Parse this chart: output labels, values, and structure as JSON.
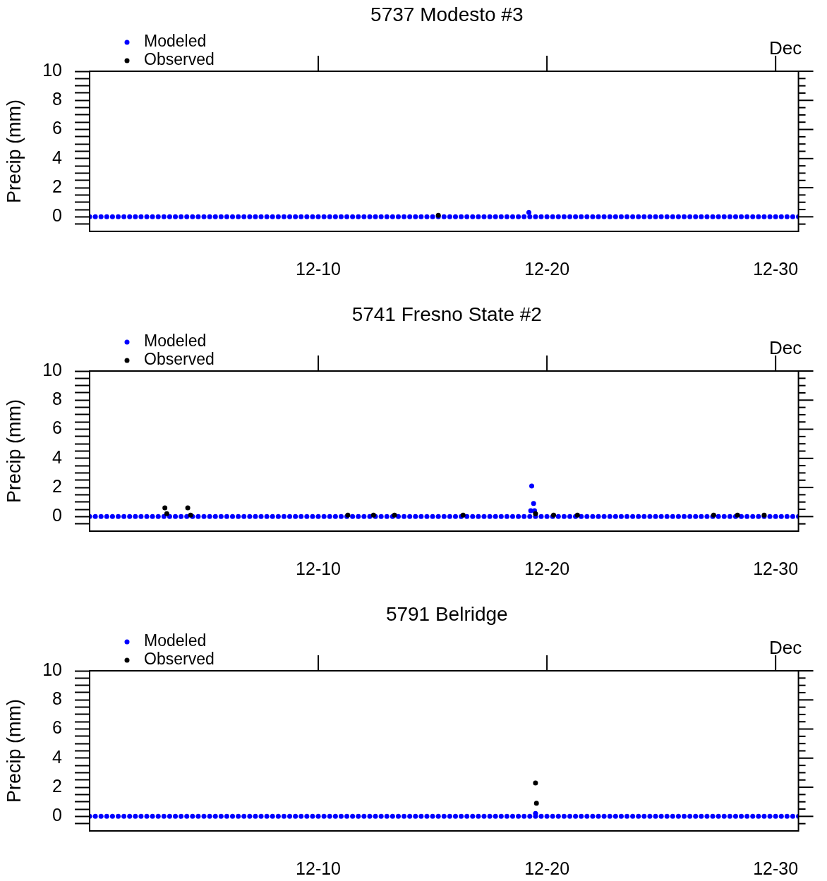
{
  "chart_data": [
    {
      "type": "scatter",
      "title": "5737 Modesto #3",
      "ylabel": "Precip (mm)",
      "annotations": [
        {
          "text": "Dec",
          "x": "--12-30T00:00"
        }
      ],
      "xlim": [
        "--11-30T00:00",
        "--12-31T00:00"
      ],
      "xticks": [
        {
          "value": "--12-10",
          "label": "12-10"
        },
        {
          "value": "--12-20",
          "label": "12-20"
        },
        {
          "value": "--12-30",
          "label": "12-30"
        }
      ],
      "ylim": [
        -1,
        10
      ],
      "yticks": [
        {
          "value": -0.5,
          "label": null
        },
        0,
        {
          "value": 0.5,
          "label": null
        },
        {
          "value": 1,
          "label": null
        },
        {
          "value": 1.5,
          "label": null
        },
        2,
        {
          "value": 2.5,
          "label": null
        },
        {
          "value": 3,
          "label": null
        },
        {
          "value": 3.5,
          "label": null
        },
        4,
        {
          "value": 4.5,
          "label": null
        },
        {
          "value": 5,
          "label": null
        },
        {
          "value": 5.5,
          "label": null
        },
        6,
        {
          "value": 6.5,
          "label": null
        },
        {
          "value": 7,
          "label": null
        },
        {
          "value": 7.5,
          "label": null
        },
        8,
        {
          "value": 8.5,
          "label": null
        },
        {
          "value": 9,
          "label": null
        },
        {
          "value": 9.5,
          "label": null
        },
        10
      ],
      "legend": "top left",
      "marker": "circle",
      "series": [
        {
          "name": "Modeled",
          "color": "#0000ff",
          "x": [
            "--11-30T00:00",
            "--11-30T06:00",
            "--11-30T12:00",
            "--11-30T18:00",
            "--12-01T00:00",
            "--12-01T06:00",
            "--12-01T12:00",
            "--12-01T18:00",
            "--12-02T00:00",
            "--12-02T06:00",
            "--12-02T12:00",
            "--12-02T18:00",
            "--12-03T00:00",
            "--12-03T06:00",
            "--12-03T12:00",
            "--12-03T18:00",
            "--12-04T00:00",
            "--12-04T06:00",
            "--12-04T12:00",
            "--12-04T18:00",
            "--12-05T00:00",
            "--12-05T06:00",
            "--12-05T12:00",
            "--12-05T18:00",
            "--12-06T00:00",
            "--12-06T06:00",
            "--12-06T12:00",
            "--12-06T18:00",
            "--12-07T00:00",
            "--12-07T06:00",
            "--12-07T12:00",
            "--12-07T18:00",
            "--12-08T00:00",
            "--12-08T06:00",
            "--12-08T12:00",
            "--12-08T18:00",
            "--12-09T00:00",
            "--12-09T06:00",
            "--12-09T12:00",
            "--12-09T18:00",
            "--12-10T00:00",
            "--12-10T06:00",
            "--12-10T12:00",
            "--12-10T18:00",
            "--12-11T00:00",
            "--12-11T06:00",
            "--12-11T12:00",
            "--12-11T18:00",
            "--12-12T00:00",
            "--12-12T06:00",
            "--12-12T12:00",
            "--12-12T18:00",
            "--12-13T00:00",
            "--12-13T06:00",
            "--12-13T12:00",
            "--12-13T18:00",
            "--12-14T00:00",
            "--12-14T06:00",
            "--12-14T12:00",
            "--12-14T18:00",
            "--12-15T00:00",
            "--12-15T06:00",
            "--12-15T12:00",
            "--12-15T18:00",
            "--12-16T00:00",
            "--12-16T06:00",
            "--12-16T12:00",
            "--12-16T18:00",
            "--12-17T00:00",
            "--12-17T06:00",
            "--12-17T12:00",
            "--12-17T18:00",
            "--12-18T00:00",
            "--12-18T06:00",
            "--12-18T12:00",
            "--12-18T18:00",
            "--12-19T00:00",
            "--12-19T06:00",
            "--12-19T12:00",
            "--12-19T18:00",
            "--12-20T00:00",
            "--12-20T06:00",
            "--12-20T12:00",
            "--12-20T18:00",
            "--12-21T00:00",
            "--12-21T06:00",
            "--12-21T12:00",
            "--12-21T18:00",
            "--12-22T00:00",
            "--12-22T06:00",
            "--12-22T12:00",
            "--12-22T18:00",
            "--12-23T00:00",
            "--12-23T06:00",
            "--12-23T12:00",
            "--12-23T18:00",
            "--12-24T00:00",
            "--12-24T06:00",
            "--12-24T12:00",
            "--12-24T18:00",
            "--12-25T00:00",
            "--12-25T06:00",
            "--12-25T12:00",
            "--12-25T18:00",
            "--12-26T00:00",
            "--12-26T06:00",
            "--12-26T12:00",
            "--12-26T18:00",
            "--12-27T00:00",
            "--12-27T06:00",
            "--12-27T12:00",
            "--12-27T18:00",
            "--12-28T00:00",
            "--12-28T06:00",
            "--12-28T12:00",
            "--12-28T18:00",
            "--12-29T00:00",
            "--12-29T06:00",
            "--12-29T12:00",
            "--12-29T18:00",
            "--12-30T00:00",
            "--12-30T06:00",
            "--12-30T12:00",
            "--12-30T18:00",
            "--12-31T00:00",
            "--12-19T05:00"
          ],
          "values": [
            0,
            0,
            0,
            0,
            0,
            0,
            0,
            0,
            0,
            0,
            0,
            0,
            0,
            0,
            0,
            0,
            0,
            0,
            0,
            0,
            0,
            0,
            0,
            0,
            0,
            0,
            0,
            0,
            0,
            0,
            0,
            0,
            0,
            0,
            0,
            0,
            0,
            0,
            0,
            0,
            0,
            0,
            0,
            0,
            0,
            0,
            0,
            0,
            0,
            0,
            0,
            0,
            0,
            0,
            0,
            0,
            0,
            0,
            0,
            0,
            0,
            0,
            0,
            0,
            0,
            0,
            0,
            0,
            0,
            0,
            0,
            0,
            0,
            0,
            0,
            0,
            0,
            0,
            0,
            0,
            0,
            0,
            0,
            0,
            0,
            0,
            0,
            0,
            0,
            0,
            0,
            0,
            0,
            0,
            0,
            0,
            0,
            0,
            0,
            0,
            0,
            0,
            0,
            0,
            0,
            0,
            0,
            0,
            0,
            0,
            0,
            0,
            0,
            0,
            0,
            0,
            0,
            0,
            0,
            0,
            0,
            0,
            0,
            0,
            0,
            0.3
          ]
        },
        {
          "name": "Observed",
          "color": "#000000",
          "x": [
            "--12-15T06:00"
          ],
          "values": [
            0.1
          ]
        }
      ]
    },
    {
      "type": "scatter",
      "title": "5741 Fresno State #2",
      "ylabel": "Precip (mm)",
      "annotations": [
        {
          "text": "Dec",
          "x": "--12-30T00:00"
        }
      ],
      "xlim": [
        "--11-30T00:00",
        "--12-31T00:00"
      ],
      "xticks": [
        {
          "value": "--12-10",
          "label": "12-10"
        },
        {
          "value": "--12-20",
          "label": "12-20"
        },
        {
          "value": "--12-30",
          "label": "12-30"
        }
      ],
      "ylim": [
        -1,
        10
      ],
      "yticks": [
        {
          "value": -0.5,
          "label": null
        },
        0,
        {
          "value": 0.5,
          "label": null
        },
        {
          "value": 1,
          "label": null
        },
        {
          "value": 1.5,
          "label": null
        },
        2,
        {
          "value": 2.5,
          "label": null
        },
        {
          "value": 3,
          "label": null
        },
        {
          "value": 3.5,
          "label": null
        },
        4,
        {
          "value": 4.5,
          "label": null
        },
        {
          "value": 5,
          "label": null
        },
        {
          "value": 5.5,
          "label": null
        },
        6,
        {
          "value": 6.5,
          "label": null
        },
        {
          "value": 7,
          "label": null
        },
        {
          "value": 7.5,
          "label": null
        },
        8,
        {
          "value": 8.5,
          "label": null
        },
        {
          "value": 9,
          "label": null
        },
        {
          "value": 9.5,
          "label": null
        },
        10
      ],
      "legend": "top left",
      "marker": "circle",
      "series": [
        {
          "name": "Modeled",
          "color": "#0000ff",
          "x": [
            "--11-30T00:00",
            "--11-30T06:00",
            "--11-30T12:00",
            "--11-30T18:00",
            "--12-01T00:00",
            "--12-01T06:00",
            "--12-01T12:00",
            "--12-01T18:00",
            "--12-02T00:00",
            "--12-02T06:00",
            "--12-02T12:00",
            "--12-02T18:00",
            "--12-03T00:00",
            "--12-03T06:00",
            "--12-03T12:00",
            "--12-03T18:00",
            "--12-04T00:00",
            "--12-04T06:00",
            "--12-04T12:00",
            "--12-04T18:00",
            "--12-05T00:00",
            "--12-05T06:00",
            "--12-05T12:00",
            "--12-05T18:00",
            "--12-06T00:00",
            "--12-06T06:00",
            "--12-06T12:00",
            "--12-06T18:00",
            "--12-07T00:00",
            "--12-07T06:00",
            "--12-07T12:00",
            "--12-07T18:00",
            "--12-08T00:00",
            "--12-08T06:00",
            "--12-08T12:00",
            "--12-08T18:00",
            "--12-09T00:00",
            "--12-09T06:00",
            "--12-09T12:00",
            "--12-09T18:00",
            "--12-10T00:00",
            "--12-10T06:00",
            "--12-10T12:00",
            "--12-10T18:00",
            "--12-11T00:00",
            "--12-11T06:00",
            "--12-11T12:00",
            "--12-11T18:00",
            "--12-12T00:00",
            "--12-12T06:00",
            "--12-12T12:00",
            "--12-12T18:00",
            "--12-13T00:00",
            "--12-13T06:00",
            "--12-13T12:00",
            "--12-13T18:00",
            "--12-14T00:00",
            "--12-14T06:00",
            "--12-14T12:00",
            "--12-14T18:00",
            "--12-15T00:00",
            "--12-15T06:00",
            "--12-15T12:00",
            "--12-15T18:00",
            "--12-16T00:00",
            "--12-16T06:00",
            "--12-16T12:00",
            "--12-16T18:00",
            "--12-17T00:00",
            "--12-17T06:00",
            "--12-17T12:00",
            "--12-17T18:00",
            "--12-18T00:00",
            "--12-18T06:00",
            "--12-18T12:00",
            "--12-18T18:00",
            "--12-19T00:00",
            "--12-19T06:00",
            "--12-19T12:00",
            "--12-19T18:00",
            "--12-20T00:00",
            "--12-20T06:00",
            "--12-20T12:00",
            "--12-20T18:00",
            "--12-21T00:00",
            "--12-21T06:00",
            "--12-21T12:00",
            "--12-21T18:00",
            "--12-22T00:00",
            "--12-22T06:00",
            "--12-22T12:00",
            "--12-22T18:00",
            "--12-23T00:00",
            "--12-23T06:00",
            "--12-23T12:00",
            "--12-23T18:00",
            "--12-24T00:00",
            "--12-24T06:00",
            "--12-24T12:00",
            "--12-24T18:00",
            "--12-25T00:00",
            "--12-25T06:00",
            "--12-25T12:00",
            "--12-25T18:00",
            "--12-26T00:00",
            "--12-26T06:00",
            "--12-26T12:00",
            "--12-26T18:00",
            "--12-27T00:00",
            "--12-27T06:00",
            "--12-27T12:00",
            "--12-27T18:00",
            "--12-28T00:00",
            "--12-28T06:00",
            "--12-28T12:00",
            "--12-28T18:00",
            "--12-29T00:00",
            "--12-29T06:00",
            "--12-29T12:00",
            "--12-29T18:00",
            "--12-30T00:00",
            "--12-30T06:00",
            "--12-30T12:00",
            "--12-30T18:00",
            "--12-31T00:00",
            "--12-19T08:00",
            "--12-19T10:00",
            "--12-19T07:00",
            "--12-19T11:00"
          ],
          "values": [
            0,
            0,
            0,
            0,
            0,
            0,
            0,
            0,
            0,
            0,
            0,
            0,
            0,
            0,
            0,
            0,
            0,
            0,
            0,
            0,
            0,
            0,
            0,
            0,
            0,
            0,
            0,
            0,
            0,
            0,
            0,
            0,
            0,
            0,
            0,
            0,
            0,
            0,
            0,
            0,
            0,
            0,
            0,
            0,
            0,
            0,
            0,
            0,
            0,
            0,
            0,
            0,
            0,
            0,
            0,
            0,
            0,
            0,
            0,
            0,
            0,
            0,
            0,
            0,
            0,
            0,
            0,
            0,
            0,
            0,
            0,
            0,
            0,
            0,
            0,
            0,
            0,
            0,
            0,
            0,
            0,
            0,
            0,
            0,
            0,
            0,
            0,
            0,
            0,
            0,
            0,
            0,
            0,
            0,
            0,
            0,
            0,
            0,
            0,
            0,
            0,
            0,
            0,
            0,
            0,
            0,
            0,
            0,
            0,
            0,
            0,
            0,
            0,
            0,
            0,
            0,
            0,
            0,
            0,
            0,
            0,
            0,
            0,
            0,
            0,
            2.1,
            0.9,
            0.4,
            0.4
          ]
        },
        {
          "name": "Observed",
          "color": "#000000",
          "x": [
            "--12-03T07:00",
            "--12-03T09:00",
            "--12-04T07:00",
            "--12-04T10:00",
            "--12-11T07:00",
            "--12-12T10:00",
            "--12-13T08:00",
            "--12-16T08:00",
            "--12-19T12:00",
            "--12-20T07:00",
            "--12-21T08:00",
            "--12-27T07:00",
            "--12-28T08:00",
            "--12-29T12:00"
          ],
          "values": [
            0.6,
            0.2,
            0.6,
            0.1,
            0.1,
            0.1,
            0.1,
            0.1,
            0.2,
            0.1,
            0.1,
            0.1,
            0.1,
            0.1
          ]
        }
      ]
    },
    {
      "type": "scatter",
      "title": "5791 Belridge",
      "ylabel": "Precip (mm)",
      "annotations": [
        {
          "text": "Dec",
          "x": "--12-30T00:00"
        }
      ],
      "xlim": [
        "--11-30T00:00",
        "--12-31T00:00"
      ],
      "xticks": [
        {
          "value": "--12-10",
          "label": "12-10"
        },
        {
          "value": "--12-20",
          "label": "12-20"
        },
        {
          "value": "--12-30",
          "label": "12-30"
        }
      ],
      "ylim": [
        -1,
        10
      ],
      "yticks": [
        {
          "value": -0.5,
          "label": null
        },
        0,
        {
          "value": 0.5,
          "label": null
        },
        {
          "value": 1,
          "label": null
        },
        {
          "value": 1.5,
          "label": null
        },
        2,
        {
          "value": 2.5,
          "label": null
        },
        {
          "value": 3,
          "label": null
        },
        {
          "value": 3.5,
          "label": null
        },
        4,
        {
          "value": 4.5,
          "label": null
        },
        {
          "value": 5,
          "label": null
        },
        {
          "value": 5.5,
          "label": null
        },
        6,
        {
          "value": 6.5,
          "label": null
        },
        {
          "value": 7,
          "label": null
        },
        {
          "value": 7.5,
          "label": null
        },
        8,
        {
          "value": 8.5,
          "label": null
        },
        {
          "value": 9,
          "label": null
        },
        {
          "value": 9.5,
          "label": null
        },
        10
      ],
      "legend": "top left",
      "marker": "circle",
      "series": [
        {
          "name": "Modeled",
          "color": "#0000ff",
          "x": [
            "--11-30T00:00",
            "--11-30T06:00",
            "--11-30T12:00",
            "--11-30T18:00",
            "--12-01T00:00",
            "--12-01T06:00",
            "--12-01T12:00",
            "--12-01T18:00",
            "--12-02T00:00",
            "--12-02T06:00",
            "--12-02T12:00",
            "--12-02T18:00",
            "--12-03T00:00",
            "--12-03T06:00",
            "--12-03T12:00",
            "--12-03T18:00",
            "--12-04T00:00",
            "--12-04T06:00",
            "--12-04T12:00",
            "--12-04T18:00",
            "--12-05T00:00",
            "--12-05T06:00",
            "--12-05T12:00",
            "--12-05T18:00",
            "--12-06T00:00",
            "--12-06T06:00",
            "--12-06T12:00",
            "--12-06T18:00",
            "--12-07T00:00",
            "--12-07T06:00",
            "--12-07T12:00",
            "--12-07T18:00",
            "--12-08T00:00",
            "--12-08T06:00",
            "--12-08T12:00",
            "--12-08T18:00",
            "--12-09T00:00",
            "--12-09T06:00",
            "--12-09T12:00",
            "--12-09T18:00",
            "--12-10T00:00",
            "--12-10T06:00",
            "--12-10T12:00",
            "--12-10T18:00",
            "--12-11T00:00",
            "--12-11T06:00",
            "--12-11T12:00",
            "--12-11T18:00",
            "--12-12T00:00",
            "--12-12T06:00",
            "--12-12T12:00",
            "--12-12T18:00",
            "--12-13T00:00",
            "--12-13T06:00",
            "--12-13T12:00",
            "--12-13T18:00",
            "--12-14T00:00",
            "--12-14T06:00",
            "--12-14T12:00",
            "--12-14T18:00",
            "--12-15T00:00",
            "--12-15T06:00",
            "--12-15T12:00",
            "--12-15T18:00",
            "--12-16T00:00",
            "--12-16T06:00",
            "--12-16T12:00",
            "--12-16T18:00",
            "--12-17T00:00",
            "--12-17T06:00",
            "--12-17T12:00",
            "--12-17T18:00",
            "--12-18T00:00",
            "--12-18T06:00",
            "--12-18T12:00",
            "--12-18T18:00",
            "--12-19T00:00",
            "--12-19T06:00",
            "--12-19T12:00",
            "--12-19T18:00",
            "--12-20T00:00",
            "--12-20T06:00",
            "--12-20T12:00",
            "--12-20T18:00",
            "--12-21T00:00",
            "--12-21T06:00",
            "--12-21T12:00",
            "--12-21T18:00",
            "--12-22T00:00",
            "--12-22T06:00",
            "--12-22T12:00",
            "--12-22T18:00",
            "--12-23T00:00",
            "--12-23T06:00",
            "--12-23T12:00",
            "--12-23T18:00",
            "--12-24T00:00",
            "--12-24T06:00",
            "--12-24T12:00",
            "--12-24T18:00",
            "--12-25T00:00",
            "--12-25T06:00",
            "--12-25T12:00",
            "--12-25T18:00",
            "--12-26T00:00",
            "--12-26T06:00",
            "--12-26T12:00",
            "--12-26T18:00",
            "--12-27T00:00",
            "--12-27T06:00",
            "--12-27T12:00",
            "--12-27T18:00",
            "--12-28T00:00",
            "--12-28T06:00",
            "--12-28T12:00",
            "--12-28T18:00",
            "--12-29T00:00",
            "--12-29T06:00",
            "--12-29T12:00",
            "--12-29T18:00",
            "--12-30T00:00",
            "--12-30T06:00",
            "--12-30T12:00",
            "--12-30T18:00",
            "--12-31T00:00",
            "--12-19T12:00"
          ],
          "values": [
            0,
            0,
            0,
            0,
            0,
            0,
            0,
            0,
            0,
            0,
            0,
            0,
            0,
            0,
            0,
            0,
            0,
            0,
            0,
            0,
            0,
            0,
            0,
            0,
            0,
            0,
            0,
            0,
            0,
            0,
            0,
            0,
            0,
            0,
            0,
            0,
            0,
            0,
            0,
            0,
            0,
            0,
            0,
            0,
            0,
            0,
            0,
            0,
            0,
            0,
            0,
            0,
            0,
            0,
            0,
            0,
            0,
            0,
            0,
            0,
            0,
            0,
            0,
            0,
            0,
            0,
            0,
            0,
            0,
            0,
            0,
            0,
            0,
            0,
            0,
            0,
            0,
            0,
            0,
            0,
            0,
            0,
            0,
            0,
            0,
            0,
            0,
            0,
            0,
            0,
            0,
            0,
            0,
            0,
            0,
            0,
            0,
            0,
            0,
            0,
            0,
            0,
            0,
            0,
            0,
            0,
            0,
            0,
            0,
            0,
            0,
            0,
            0,
            0,
            0,
            0,
            0,
            0,
            0,
            0,
            0,
            0,
            0,
            0,
            0,
            0.2
          ]
        },
        {
          "name": "Observed",
          "color": "#000000",
          "x": [
            "--12-19T12:00",
            "--12-19T13:00"
          ],
          "values": [
            2.3,
            0.9
          ]
        }
      ]
    }
  ]
}
